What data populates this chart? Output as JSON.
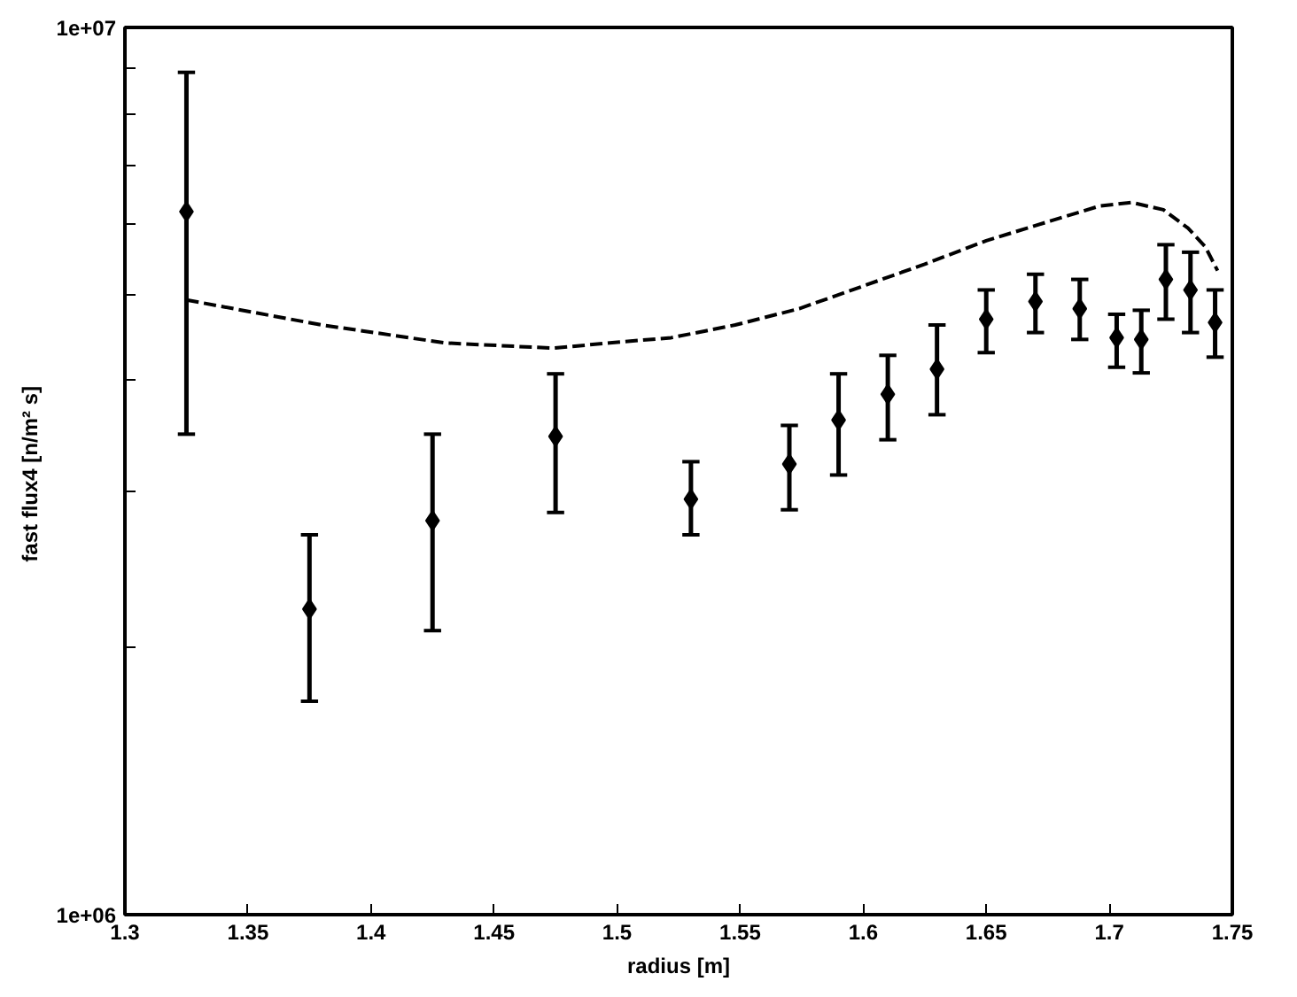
{
  "chart_data": {
    "type": "scatter",
    "xlabel": "radius [m]",
    "ylabel": "fast flux4  [n/m² s]",
    "log": "y",
    "grid": false,
    "xlim": [
      1.3,
      1.75
    ],
    "xticks": [
      1.3,
      1.35,
      1.4,
      1.45,
      1.5,
      1.55,
      1.6,
      1.65,
      1.7,
      1.75
    ],
    "ylim": [
      1000000,
      10000000
    ],
    "yticks": [
      {
        "value": 1000000,
        "label": "1e+06"
      },
      {
        "value": 2000000,
        "label": null
      },
      {
        "value": 3000000,
        "label": null
      },
      {
        "value": 4000000,
        "label": null
      },
      {
        "value": 5000000,
        "label": null
      },
      {
        "value": 6000000,
        "label": null
      },
      {
        "value": 7000000,
        "label": null
      },
      {
        "value": 8000000,
        "label": null
      },
      {
        "value": 9000000,
        "label": null
      },
      {
        "value": 10000000,
        "label": "1e+07"
      }
    ],
    "series": [
      {
        "color": "#000000",
        "marker": "diamond",
        "x": [
          1.325,
          1.375,
          1.425,
          1.475,
          1.53,
          1.57,
          1.59,
          1.61,
          1.63,
          1.65,
          1.67,
          1.688,
          1.703,
          1.713,
          1.723,
          1.733,
          1.743
        ],
        "values": [
          6200000,
          2210000,
          2780000,
          3460000,
          2940000,
          3220000,
          3610000,
          3860000,
          4120000,
          4690000,
          4910000,
          4820000,
          4470000,
          4450000,
          5200000,
          5060000,
          4650000
        ],
        "errors": [
          [
            3480000,
            8900000
          ],
          [
            1740000,
            2680000
          ],
          [
            2090000,
            3480000
          ],
          [
            2840000,
            4070000
          ],
          [
            2680000,
            3240000
          ],
          [
            2860000,
            3560000
          ],
          [
            3130000,
            4070000
          ],
          [
            3430000,
            4270000
          ],
          [
            3660000,
            4620000
          ],
          [
            4300000,
            5060000
          ],
          [
            4530000,
            5270000
          ],
          [
            4450000,
            5200000
          ],
          [
            4140000,
            4750000
          ],
          [
            4080000,
            4800000
          ],
          [
            4690000,
            5690000
          ],
          [
            4530000,
            5580000
          ],
          [
            4250000,
            5060000
          ]
        ]
      },
      {
        "type": "line",
        "color": "#000000",
        "line_style": "dashed",
        "x": [
          1.325,
          1.38,
          1.43,
          1.474,
          1.497,
          1.522,
          1.548,
          1.574,
          1.599,
          1.625,
          1.65,
          1.676,
          1.696,
          1.709,
          1.722,
          1.732,
          1.739,
          1.744
        ],
        "values": [
          4930000,
          4620000,
          4410000,
          4350000,
          4410000,
          4470000,
          4620000,
          4820000,
          5100000,
          5410000,
          5750000,
          6050000,
          6290000,
          6350000,
          6230000,
          5940000,
          5660000,
          5320000
        ]
      }
    ]
  }
}
